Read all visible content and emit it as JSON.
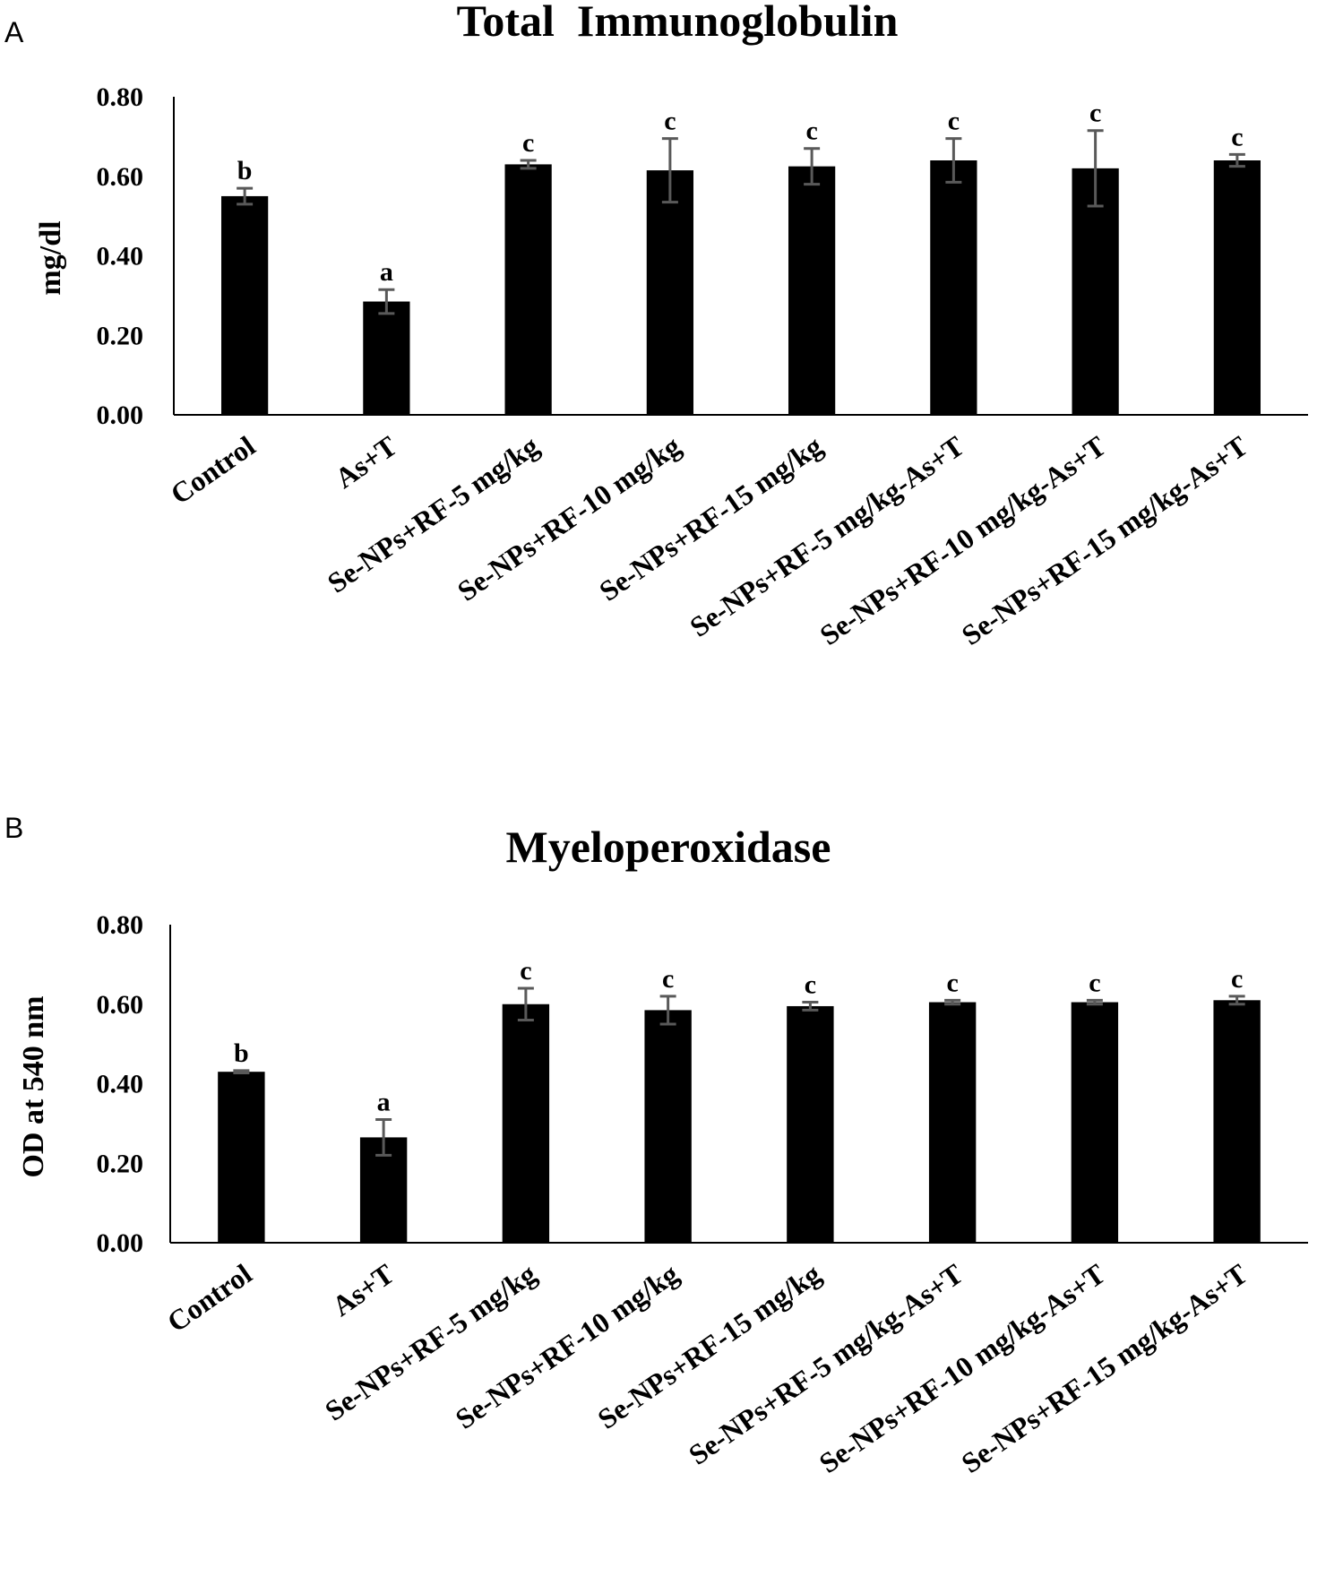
{
  "chart_data": [
    {
      "type": "bar",
      "panel": "A",
      "title": "Total  Immunoglobulin",
      "ylabel": "mg/dl",
      "xlabel": "",
      "ylim": [
        0,
        0.8
      ],
      "yticks": [
        "0.00",
        "0.20",
        "0.40",
        "0.60",
        "0.80"
      ],
      "categories": [
        "Control",
        "As+T",
        "Se-NPs+RF-5 mg/kg",
        "Se-NPs+RF-10 mg/kg",
        "Se-NPs+RF-15 mg/kg",
        "Se-NPs+RF-5 mg/kg-As+T",
        "Se-NPs+RF-10 mg/kg-As+T",
        "Se-NPs+RF-15 mg/kg-As+T"
      ],
      "values": [
        0.55,
        0.285,
        0.63,
        0.615,
        0.625,
        0.64,
        0.62,
        0.64
      ],
      "errors": [
        0.02,
        0.03,
        0.01,
        0.08,
        0.045,
        0.055,
        0.095,
        0.015
      ],
      "letters": [
        "b",
        "a",
        "c",
        "c",
        "c",
        "c",
        "c",
        "c"
      ],
      "grid": false,
      "legend": "none",
      "bar_color": "#000000",
      "error_color": "#595959"
    },
    {
      "type": "bar",
      "panel": "B",
      "title": "Myeloperoxidase",
      "ylabel": "OD at 540 nm",
      "xlabel": "",
      "ylim": [
        0,
        0.8
      ],
      "yticks": [
        "0.00",
        "0.20",
        "0.40",
        "0.60",
        "0.80"
      ],
      "categories": [
        "Control",
        "As+T",
        "Se-NPs+RF-5 mg/kg",
        "Se-NPs+RF-10 mg/kg",
        "Se-NPs+RF-15 mg/kg",
        "Se-NPs+RF-5 mg/kg-As+T",
        "Se-NPs+RF-10 mg/kg-As+T",
        "Se-NPs+RF-15 mg/kg-As+T"
      ],
      "values": [
        0.43,
        0.265,
        0.6,
        0.585,
        0.595,
        0.605,
        0.605,
        0.61
      ],
      "errors": [
        0.003,
        0.045,
        0.04,
        0.035,
        0.01,
        0.005,
        0.005,
        0.01
      ],
      "letters": [
        "b",
        "a",
        "c",
        "c",
        "c",
        "c",
        "c",
        "c"
      ],
      "grid": false,
      "legend": "none",
      "bar_color": "#000000",
      "error_color": "#595959"
    }
  ]
}
